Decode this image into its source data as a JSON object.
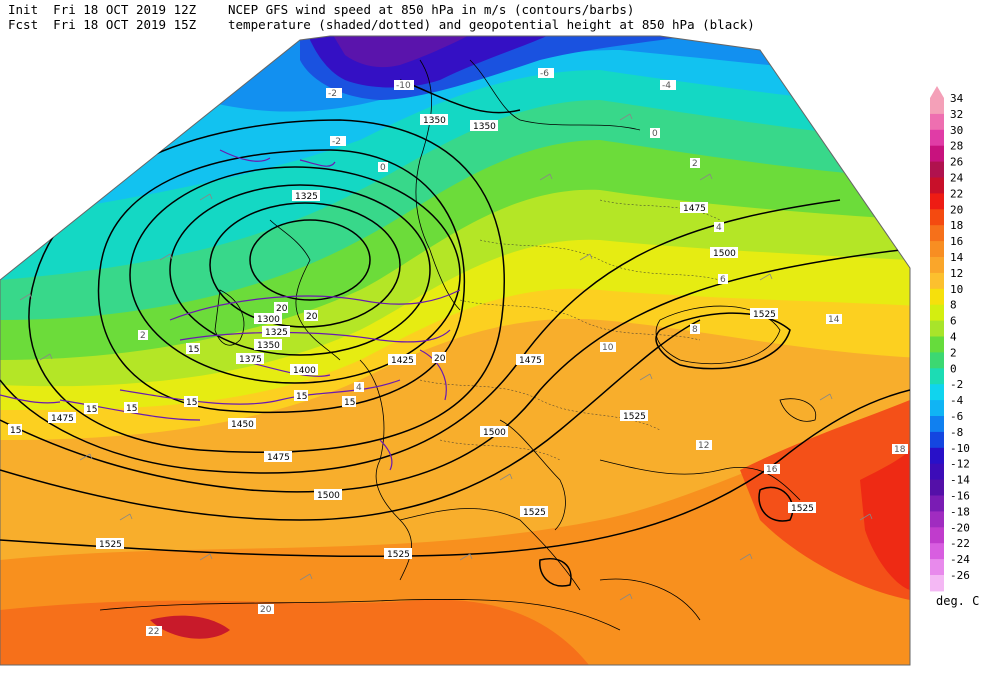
{
  "header": {
    "init_label": "Init",
    "init_time": "Fri 18 OCT 2019 12Z",
    "fcst_label": "Fcst",
    "fcst_time": "Fri 18 OCT 2019 15Z",
    "title_line1": "NCEP GFS wind speed at 850 hPa in m/s (contours/barbs)",
    "title_line2": "temperature (shaded/dotted) and geopotential height at 850 hPa (black)"
  },
  "colorbar": {
    "unit": "deg. C",
    "levels": [
      34,
      32,
      30,
      28,
      26,
      24,
      22,
      20,
      18,
      16,
      14,
      12,
      10,
      8,
      6,
      4,
      2,
      0,
      -2,
      -4,
      -6,
      -8,
      -10,
      -12,
      -14,
      -16,
      -18,
      -20,
      -22,
      -24,
      -26
    ],
    "colors": [
      "#f4a0b8",
      "#ee6fb0",
      "#e03ca6",
      "#c8127e",
      "#b0124e",
      "#c8102a",
      "#ee1c14",
      "#f44a10",
      "#f6701a",
      "#f88e22",
      "#faa62a",
      "#fcc02e",
      "#f6e00c",
      "#d4ee10",
      "#a8e42a",
      "#66dc3c",
      "#3cd872",
      "#1cdcb4",
      "#10d4ee",
      "#10b4f4",
      "#1080f0",
      "#1446e0",
      "#2810c8",
      "#3c0cb8",
      "#5410a8",
      "#7a1cb4",
      "#a02cc0",
      "#c03ccc",
      "#d85ee0",
      "#e88aec",
      "#f4b8f4"
    ]
  },
  "geopotential_labels": [
    "1350",
    "1350",
    "1325",
    "1475",
    "1500",
    "1525",
    "1300",
    "1325",
    "1350",
    "1375",
    "1400",
    "1425",
    "1450",
    "1475",
    "1475",
    "1500",
    "1500",
    "1525",
    "1525",
    "1525",
    "1525",
    "1525",
    "1475"
  ],
  "wind_labels": [
    "15",
    "15",
    "15",
    "20",
    "20",
    "15",
    "15",
    "20",
    "15",
    "15"
  ],
  "isotherm_labels": [
    "-10",
    "-6",
    "-4",
    "-2",
    "0",
    "0",
    "2",
    "4",
    "6",
    "8",
    "10",
    "12",
    "14",
    "16",
    "18",
    "20",
    "22",
    "-2",
    "2",
    "4"
  ]
}
